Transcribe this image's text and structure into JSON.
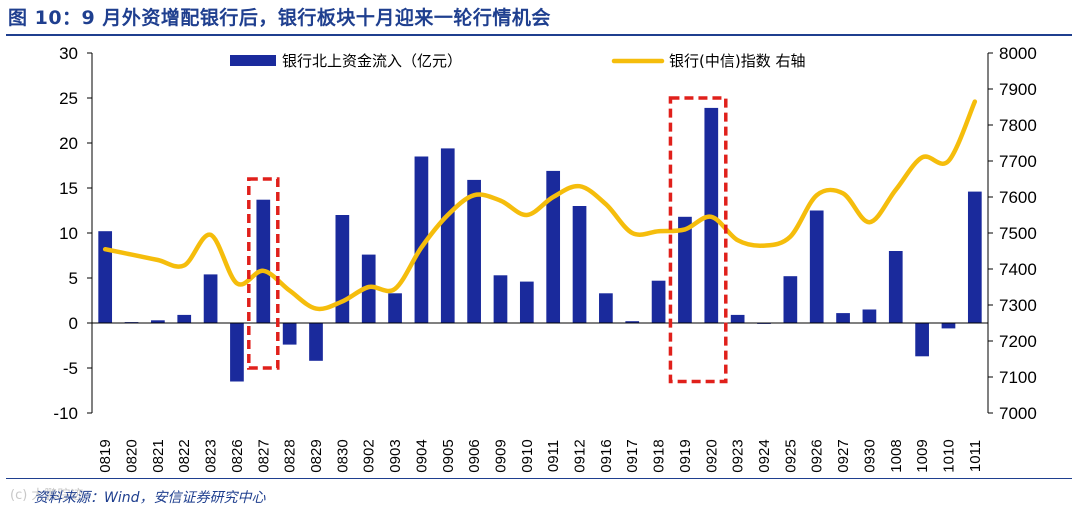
{
  "header": {
    "title": "图 10：9 月外资增配银行后，银行板块十月迎来一轮行情机会"
  },
  "footer": {
    "source": "资料来源：Wind，安信证券研究中心",
    "watermark": "(c) 大鹏踪迹"
  },
  "colors": {
    "bar": "#1a2a9c",
    "line": "#f5bd0c",
    "highlight": "#e0201b",
    "title": "#1f3f8f"
  },
  "chart_data": {
    "type": "bar+line",
    "title": "9 月外资增配银行后，银行板块十月迎来一轮行情机会",
    "categories": [
      "0819",
      "0820",
      "0821",
      "0822",
      "0823",
      "0826",
      "0827",
      "0828",
      "0829",
      "0830",
      "0902",
      "0903",
      "0904",
      "0905",
      "0906",
      "0909",
      "0910",
      "0911",
      "0912",
      "0916",
      "0917",
      "0918",
      "0919",
      "0920",
      "0923",
      "0924",
      "0925",
      "0926",
      "0927",
      "0930",
      "1008",
      "1009",
      "1010",
      "1011"
    ],
    "series": [
      {
        "name": "银行北上资金流入（亿元）",
        "type": "bar",
        "axis": "left",
        "values": [
          10.2,
          0.1,
          0.3,
          0.9,
          5.4,
          -6.5,
          13.7,
          -2.4,
          -4.2,
          12.0,
          7.6,
          3.3,
          18.5,
          19.4,
          15.9,
          5.3,
          4.6,
          16.9,
          13.0,
          3.3,
          0.2,
          4.7,
          11.8,
          23.9,
          0.9,
          -0.1,
          5.2,
          12.5,
          1.1,
          1.5,
          8.0,
          -3.7,
          -0.6,
          14.6
        ]
      },
      {
        "name": "银行(中信)指数 右轴",
        "type": "line",
        "axis": "right",
        "values": [
          7455,
          7440,
          7425,
          7410,
          7495,
          7360,
          7395,
          7340,
          7290,
          7310,
          7350,
          7345,
          7460,
          7550,
          7605,
          7590,
          7550,
          7600,
          7630,
          7580,
          7500,
          7505,
          7510,
          7545,
          7480,
          7465,
          7490,
          7605,
          7610,
          7530,
          7620,
          7710,
          7700,
          7865
        ]
      }
    ],
    "y_left": {
      "min": -10,
      "max": 30,
      "step": 5,
      "ticks": [
        "-10",
        "-5",
        "0",
        "5",
        "10",
        "15",
        "20",
        "25",
        "30"
      ]
    },
    "y_right": {
      "min": 7000,
      "max": 8000,
      "step": 100,
      "ticks": [
        "7000",
        "7100",
        "7200",
        "7300",
        "7400",
        "7500",
        "7600",
        "7700",
        "7800",
        "7900",
        "8000"
      ]
    },
    "highlights": [
      {
        "categories": [
          "0827"
        ],
        "y_range": [
          -5,
          16
        ]
      },
      {
        "categories": [
          "0919",
          "0920"
        ],
        "y_range": [
          -6.5,
          25
        ]
      }
    ],
    "legend": {
      "position": "top",
      "entries": [
        "银行北上资金流入（亿元）",
        "银行(中信)指数 右轴"
      ]
    }
  }
}
